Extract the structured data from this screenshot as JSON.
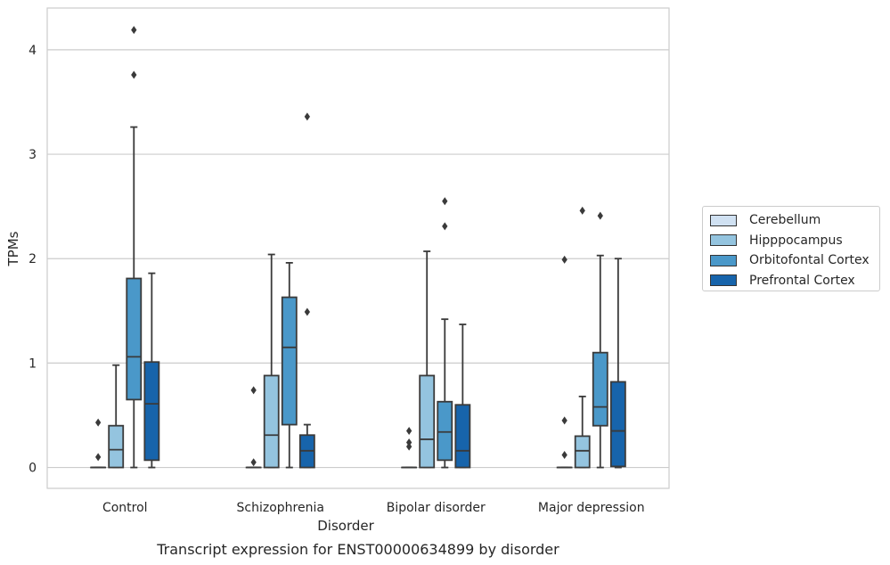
{
  "chart_data": {
    "type": "box",
    "caption": "Transcript expression for ENST00000634899 by disorder",
    "xlabel": "Disorder",
    "ylabel": "TPMs",
    "ylim": [
      -0.2,
      4.4
    ],
    "yticks": [
      0,
      1,
      2,
      3,
      4
    ],
    "grid": "horizontal",
    "legend_position": "right",
    "categories": [
      "Control",
      "Schizophrenia",
      "Bipolar disorder",
      "Major depression"
    ],
    "series": [
      {
        "name": "Cerebellum",
        "color": "#d0e1f2",
        "boxes": [
          {
            "whislo": 0,
            "q1": 0,
            "med": 0,
            "q3": 0,
            "whishi": 0,
            "fliers": [
              0.1,
              0.43
            ]
          },
          {
            "whislo": 0,
            "q1": 0,
            "med": 0,
            "q3": 0,
            "whishi": 0,
            "fliers": [
              0.05,
              0.74
            ]
          },
          {
            "whislo": 0,
            "q1": 0,
            "med": 0,
            "q3": 0,
            "whishi": 0,
            "fliers": [
              0.2,
              0.24,
              0.35
            ]
          },
          {
            "whislo": 0,
            "q1": 0,
            "med": 0,
            "q3": 0,
            "whishi": 0,
            "fliers": [
              0.12,
              0.45,
              1.99
            ]
          }
        ]
      },
      {
        "name": "Hipppocampus",
        "color": "#94c4df",
        "boxes": [
          {
            "whislo": 0,
            "q1": 0,
            "med": 0.17,
            "q3": 0.4,
            "whishi": 0.98,
            "fliers": []
          },
          {
            "whislo": 0,
            "q1": 0,
            "med": 0.31,
            "q3": 0.88,
            "whishi": 2.04,
            "fliers": []
          },
          {
            "whislo": 0,
            "q1": 0,
            "med": 0.27,
            "q3": 0.88,
            "whishi": 2.07,
            "fliers": []
          },
          {
            "whislo": 0,
            "q1": 0,
            "med": 0.16,
            "q3": 0.3,
            "whishi": 0.68,
            "fliers": [
              2.46
            ]
          }
        ]
      },
      {
        "name": "Orbitofontal Cortex",
        "color": "#4a98c9",
        "boxes": [
          {
            "whislo": 0,
            "q1": 0.65,
            "med": 1.06,
            "q3": 1.81,
            "whishi": 3.26,
            "fliers": [
              3.76,
              4.19
            ]
          },
          {
            "whislo": 0,
            "q1": 0.41,
            "med": 1.15,
            "q3": 1.63,
            "whishi": 1.96,
            "fliers": []
          },
          {
            "whislo": 0,
            "q1": 0.07,
            "med": 0.34,
            "q3": 0.63,
            "whishi": 1.42,
            "fliers": [
              2.31,
              2.55
            ]
          },
          {
            "whislo": 0,
            "q1": 0.4,
            "med": 0.58,
            "q3": 1.1,
            "whishi": 2.03,
            "fliers": [
              2.41
            ]
          }
        ]
      },
      {
        "name": "Prefrontal Cortex",
        "color": "#1764ab",
        "boxes": [
          {
            "whislo": 0,
            "q1": 0.07,
            "med": 0.61,
            "q3": 1.01,
            "whishi": 1.86,
            "fliers": []
          },
          {
            "whislo": 0,
            "q1": 0,
            "med": 0.16,
            "q3": 0.31,
            "whishi": 0.41,
            "fliers": [
              1.49,
              3.36
            ]
          },
          {
            "whislo": 0,
            "q1": 0,
            "med": 0.16,
            "q3": 0.6,
            "whishi": 1.37,
            "fliers": []
          },
          {
            "whislo": 0,
            "q1": 0.01,
            "med": 0.35,
            "q3": 0.82,
            "whishi": 2.0,
            "fliers": []
          }
        ]
      }
    ]
  }
}
